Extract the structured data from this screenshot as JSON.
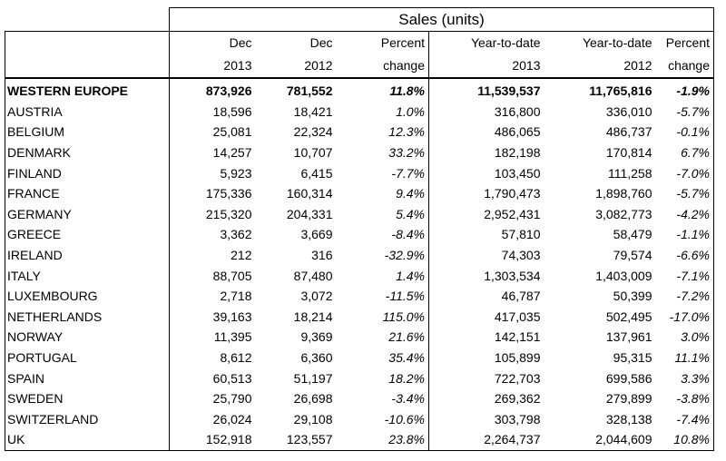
{
  "title": "Sales (units)",
  "headers": {
    "row1": [
      "Dec",
      "Dec",
      "Percent",
      "Year-to-date",
      "Year-to-date",
      "Percent"
    ],
    "row2": [
      "2013",
      "2012",
      "change",
      "2013",
      "2012",
      "change"
    ]
  },
  "rows": [
    {
      "name": "WESTERN EUROPE",
      "dec13": "873,926",
      "dec12": "781,552",
      "pct": "11.8%",
      "ytd13": "11,539,537",
      "ytd12": "11,765,816",
      "ytdpct": "-1.9%"
    },
    {
      "name": "AUSTRIA",
      "dec13": "18,596",
      "dec12": "18,421",
      "pct": "1.0%",
      "ytd13": "316,800",
      "ytd12": "336,010",
      "ytdpct": "-5.7%"
    },
    {
      "name": "BELGIUM",
      "dec13": "25,081",
      "dec12": "22,324",
      "pct": "12.3%",
      "ytd13": "486,065",
      "ytd12": "486,737",
      "ytdpct": "-0.1%"
    },
    {
      "name": "DENMARK",
      "dec13": "14,257",
      "dec12": "10,707",
      "pct": "33.2%",
      "ytd13": "182,198",
      "ytd12": "170,814",
      "ytdpct": "6.7%"
    },
    {
      "name": "FINLAND",
      "dec13": "5,923",
      "dec12": "6,415",
      "pct": "-7.7%",
      "ytd13": "103,450",
      "ytd12": "111,258",
      "ytdpct": "-7.0%"
    },
    {
      "name": "FRANCE",
      "dec13": "175,336",
      "dec12": "160,314",
      "pct": "9.4%",
      "ytd13": "1,790,473",
      "ytd12": "1,898,760",
      "ytdpct": "-5.7%"
    },
    {
      "name": "GERMANY",
      "dec13": "215,320",
      "dec12": "204,331",
      "pct": "5.4%",
      "ytd13": "2,952,431",
      "ytd12": "3,082,773",
      "ytdpct": "-4.2%"
    },
    {
      "name": "GREECE",
      "dec13": "3,362",
      "dec12": "3,669",
      "pct": "-8.4%",
      "ytd13": "57,810",
      "ytd12": "58,479",
      "ytdpct": "-1.1%"
    },
    {
      "name": "IRELAND",
      "dec13": "212",
      "dec12": "316",
      "pct": "-32.9%",
      "ytd13": "74,303",
      "ytd12": "79,574",
      "ytdpct": "-6.6%"
    },
    {
      "name": "ITALY",
      "dec13": "88,705",
      "dec12": "87,480",
      "pct": "1.4%",
      "ytd13": "1,303,534",
      "ytd12": "1,403,009",
      "ytdpct": "-7.1%"
    },
    {
      "name": "LUXEMBOURG",
      "dec13": "2,718",
      "dec12": "3,072",
      "pct": "-11.5%",
      "ytd13": "46,787",
      "ytd12": "50,399",
      "ytdpct": "-7.2%"
    },
    {
      "name": "NETHERLANDS",
      "dec13": "39,163",
      "dec12": "18,214",
      "pct": "115.0%",
      "ytd13": "417,035",
      "ytd12": "502,495",
      "ytdpct": "-17.0%"
    },
    {
      "name": "NORWAY",
      "dec13": "11,395",
      "dec12": "9,369",
      "pct": "21.6%",
      "ytd13": "142,151",
      "ytd12": "137,961",
      "ytdpct": "3.0%"
    },
    {
      "name": "PORTUGAL",
      "dec13": "8,612",
      "dec12": "6,360",
      "pct": "35.4%",
      "ytd13": "105,899",
      "ytd12": "95,315",
      "ytdpct": "11.1%"
    },
    {
      "name": "SPAIN",
      "dec13": "60,513",
      "dec12": "51,197",
      "pct": "18.2%",
      "ytd13": "722,703",
      "ytd12": "699,586",
      "ytdpct": "3.3%"
    },
    {
      "name": "SWEDEN",
      "dec13": "25,790",
      "dec12": "26,698",
      "pct": "-3.4%",
      "ytd13": "269,362",
      "ytd12": "279,899",
      "ytdpct": "-3.8%"
    },
    {
      "name": "SWITZERLAND",
      "dec13": "26,024",
      "dec12": "29,108",
      "pct": "-10.6%",
      "ytd13": "303,798",
      "ytd12": "328,138",
      "ytdpct": "-7.4%"
    },
    {
      "name": "UK",
      "dec13": "152,918",
      "dec12": "123,557",
      "pct": "23.8%",
      "ytd13": "2,264,737",
      "ytd12": "2,044,609",
      "ytdpct": "10.8%"
    }
  ]
}
